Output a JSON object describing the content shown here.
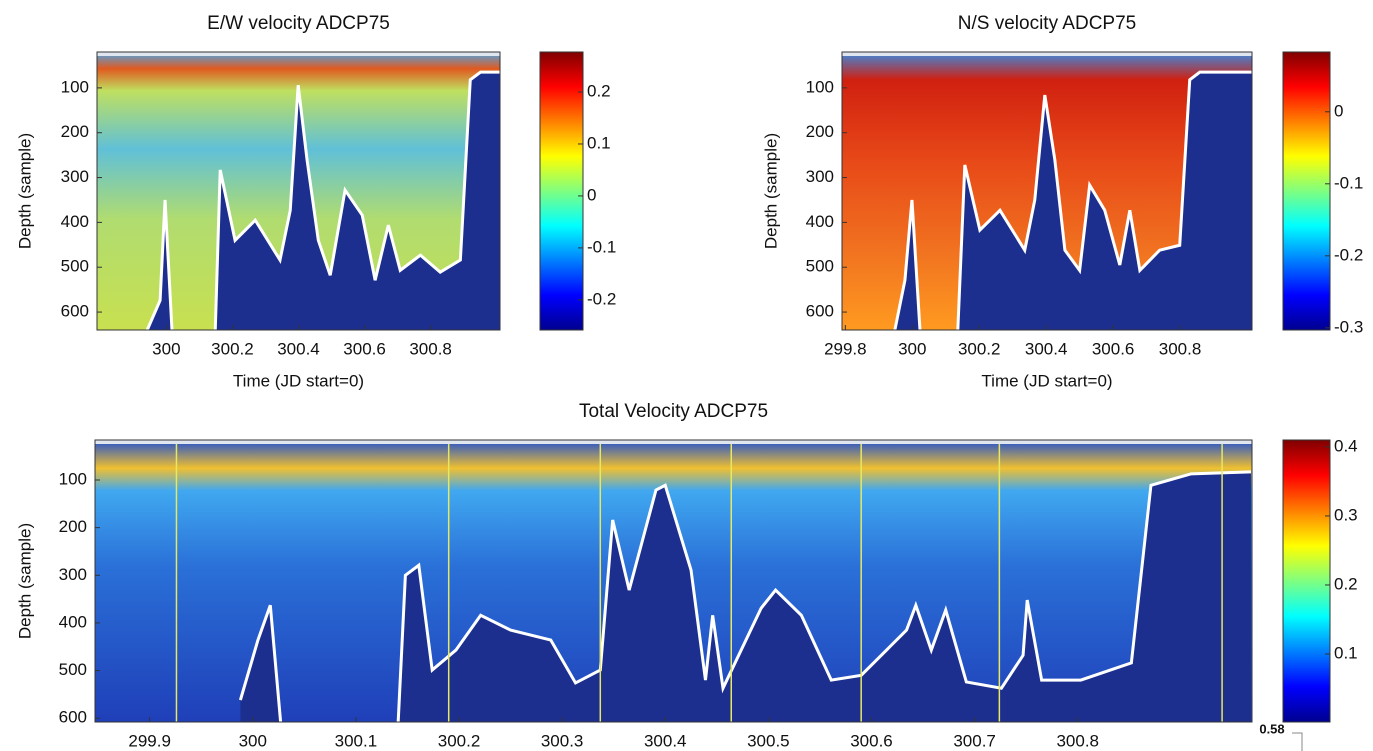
{
  "chart_data": [
    {
      "type": "line",
      "title": "E/W velocity ADCP75",
      "x_label": "Time (JD start=0)",
      "y_label": "Depth (sample)",
      "xlim": [
        299.79,
        301.01
      ],
      "xticks": [
        300,
        300.2,
        300.4,
        300.6,
        300.8
      ],
      "ylim": [
        640,
        20
      ],
      "yticks": [
        100,
        200,
        300,
        400,
        500,
        600
      ],
      "colorbar": {
        "lim": [
          -0.258,
          0.277
        ],
        "ticks": [
          0.2,
          0.1,
          0,
          -0.1,
          -0.2
        ]
      },
      "series": [
        {
          "color": "#ffffff",
          "x": [
            299.942,
            299.981,
            299.996,
            300.017,
            300.07,
            300.148,
            300.163,
            300.208,
            300.269,
            300.344,
            300.375,
            300.399,
            300.426,
            300.46,
            300.496,
            300.541,
            300.593,
            300.632,
            300.672,
            300.708,
            300.769,
            300.829,
            300.89,
            300.92,
            300.951,
            301.01
          ],
          "values": [
            640,
            574,
            350,
            640,
            null,
            640,
            283,
            440,
            395,
            484,
            373,
            94,
            261,
            440,
            518,
            328,
            384,
            529,
            406,
            507,
            473,
            511,
            484,
            82,
            65,
            65
          ]
        }
      ]
    },
    {
      "type": "line",
      "title": "N/S velocity ADCP75",
      "x_label": "Time (JD start=0)",
      "y_label": "Depth (sample)",
      "xlim": [
        299.79,
        301.015
      ],
      "xticks": [
        299.8,
        300,
        300.2,
        300.4,
        300.6,
        300.8
      ],
      "ylim": [
        640,
        20
      ],
      "yticks": [
        100,
        200,
        300,
        400,
        500,
        600
      ],
      "colorbar": {
        "lim": [
          -0.303,
          0.083
        ],
        "ticks": [
          0,
          -0.1,
          -0.2,
          -0.3
        ]
      },
      "series": [
        {
          "color": "#ffffff",
          "x": [
            299.948,
            299.978,
            299.999,
            300.023,
            300.08,
            300.136,
            300.157,
            300.202,
            300.262,
            300.336,
            300.366,
            300.396,
            300.426,
            300.456,
            300.5,
            300.53,
            300.575,
            300.62,
            300.65,
            300.68,
            300.739,
            300.799,
            300.829,
            300.859,
            301.014
          ],
          "values": [
            640,
            529,
            350,
            640,
            null,
            640,
            272,
            417,
            373,
            462,
            350,
            116,
            261,
            462,
            507,
            317,
            373,
            495,
            373,
            507,
            462,
            451,
            82,
            65,
            65
          ]
        }
      ]
    },
    {
      "type": "line",
      "title": "Total Velocity ADCP75",
      "y_label": "Depth (sample)",
      "xlim": [
        299.847,
        300.969
      ],
      "xticks": [
        299.9,
        300,
        300.1,
        300.2,
        300.3,
        300.4,
        300.5,
        300.6,
        300.7,
        300.8
      ],
      "ylim": [
        608,
        16
      ],
      "yticks": [
        100,
        200,
        300,
        400,
        500,
        600
      ],
      "colorbar": {
        "lim": [
          0.0015,
          0.41
        ],
        "ticks": [
          0.4,
          0.3,
          0.2,
          0.1
        ]
      },
      "vlines": {
        "color": "#e8e860",
        "x": [
          299.926,
          300.19,
          300.337,
          300.464,
          300.59,
          300.724,
          300.94
        ]
      },
      "series": [
        {
          "color": "#ffffff",
          "x": [
            299.988,
            300.005,
            300.017,
            300.027,
            300.08,
            300.141,
            300.148,
            300.161,
            300.174,
            300.197,
            300.221,
            300.25,
            300.289,
            300.313,
            300.337,
            300.349,
            300.365,
            300.391,
            300.4,
            300.425,
            300.439,
            300.446,
            300.456,
            300.493,
            300.507,
            300.532,
            300.561,
            300.59,
            300.634,
            300.643,
            300.658,
            300.672,
            300.692,
            300.726,
            300.747,
            300.751,
            300.765,
            300.803,
            300.852,
            300.871,
            300.91,
            300.968
          ],
          "values": [
            562,
            436,
            363,
            608,
            null,
            608,
            300,
            279,
            499,
            457,
            384,
            415,
            436,
            526,
            499,
            184,
            331,
            121,
            111,
            289,
            520,
            384,
            537,
            369,
            331,
            384,
            520,
            510,
            415,
            363,
            457,
            373,
            524,
            537,
            468,
            352,
            520,
            520,
            484,
            111,
            87,
            83
          ]
        }
      ]
    }
  ],
  "annotation": "0.58"
}
